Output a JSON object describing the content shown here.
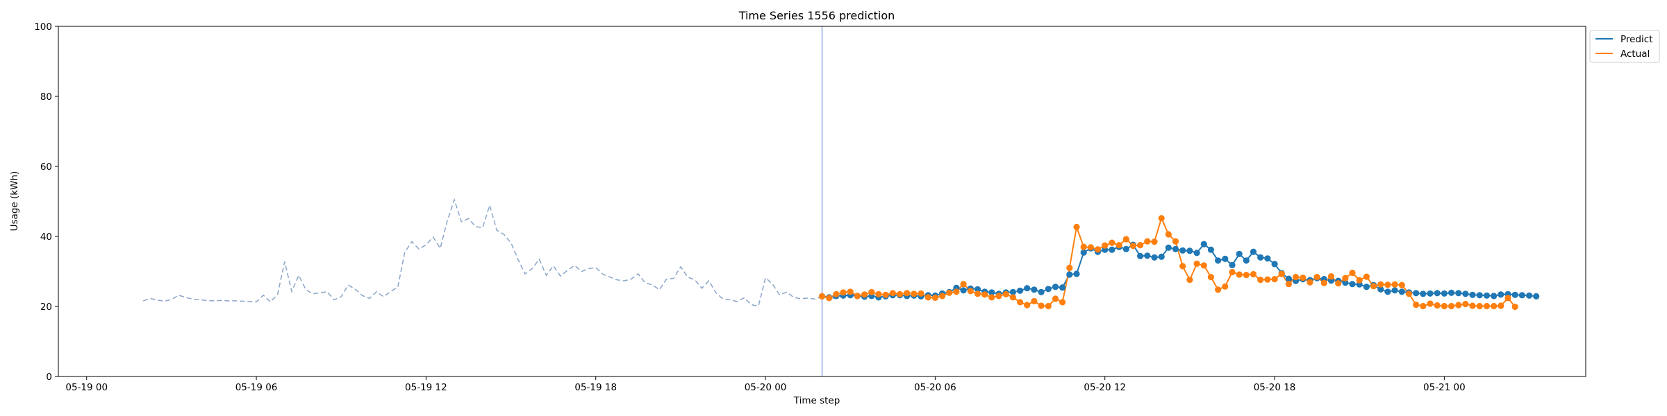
{
  "chart_data": {
    "type": "line",
    "title": "Time Series 1556 prediction",
    "xlabel": "Time step",
    "ylabel": "Usage (kWh)",
    "ylim": [
      0,
      100
    ],
    "yticks": [
      0,
      20,
      40,
      60,
      80,
      100
    ],
    "xlim": [
      "05-18 23:00",
      "05-21 05:00"
    ],
    "xticks": [
      {
        "t": "05-19 00:00",
        "label": "05-19 00"
      },
      {
        "t": "05-19 06:00",
        "label": "05-19 06"
      },
      {
        "t": "05-19 12:00",
        "label": "05-19 12"
      },
      {
        "t": "05-19 18:00",
        "label": "05-19 18"
      },
      {
        "t": "05-20 00:00",
        "label": "05-20 00"
      },
      {
        "t": "05-20 06:00",
        "label": "05-20 06"
      },
      {
        "t": "05-20 12:00",
        "label": "05-20 12"
      },
      {
        "t": "05-20 18:00",
        "label": "05-20 18"
      },
      {
        "t": "05-21 00:00",
        "label": "05-21 00"
      }
    ],
    "forecast_start": "05-20 02:00",
    "grid": false,
    "legend_position": "outside top-right",
    "history": {
      "color": "#8aa4c8",
      "style": "dashed",
      "start": "05-19 02:00",
      "interval_minutes": 15,
      "values": [
        21.6,
        22.3,
        21.8,
        21.5,
        22.0,
        23.2,
        22.6,
        22.1,
        21.9,
        21.7,
        21.6,
        21.7,
        21.6,
        21.6,
        21.5,
        21.4,
        21.3,
        23.2,
        21.3,
        23.4,
        32.8,
        24.3,
        28.9,
        24.8,
        23.6,
        23.9,
        24.2,
        21.9,
        22.8,
        26.1,
        24.9,
        23.1,
        22.3,
        24.2,
        22.8,
        24.3,
        25.5,
        35.5,
        38.5,
        36.4,
        37.6,
        39.8,
        36.6,
        44.4,
        50.5,
        44.2,
        45.1,
        42.8,
        42.5,
        48.9,
        41.8,
        40.6,
        38.2,
        33.5,
        29.3,
        30.8,
        33.5,
        28.9,
        31.6,
        28.7,
        30.3,
        31.7,
        30.0,
        30.8,
        31.1,
        29.2,
        28.4,
        27.6,
        27.3,
        27.8,
        29.3,
        26.7,
        26.2,
        24.8,
        27.8,
        28.0,
        31.3,
        28.4,
        27.6,
        25.2,
        27.3,
        23.9,
        22.1,
        21.9,
        21.4,
        22.5,
        20.5,
        20.1,
        28.2,
        26.4,
        23.3,
        24.1,
        22.6,
        22.2,
        22.4,
        22.1,
        22.9,
        22.4,
        22.3,
        23.1,
        22.9
      ]
    },
    "series": [
      {
        "name": "Predict",
        "color": "#1f77b4",
        "start": "05-20 02:00",
        "interval_minutes": 15,
        "values": [
          22.9,
          22.6,
          23.0,
          23.1,
          23.2,
          23.0,
          22.8,
          23.0,
          22.6,
          22.9,
          23.2,
          23.2,
          23.0,
          23.1,
          22.9,
          23.2,
          23.1,
          23.7,
          24.1,
          25.3,
          24.6,
          25.1,
          24.9,
          24.2,
          24.0,
          23.6,
          24.0,
          24.1,
          24.5,
          25.2,
          24.8,
          24.1,
          25.0,
          25.6,
          25.4,
          29.1,
          29.3,
          35.4,
          36.6,
          35.6,
          36.2,
          36.2,
          37.0,
          36.4,
          37.6,
          34.4,
          34.5,
          34.0,
          34.2,
          36.8,
          36.4,
          36.0,
          35.9,
          35.3,
          37.8,
          36.2,
          33.1,
          33.6,
          31.8,
          35.0,
          33.1,
          35.6,
          34.0,
          33.7,
          32.1,
          29.5,
          27.9,
          27.3,
          27.8,
          27.5,
          28.1,
          27.8,
          27.4,
          27.3,
          26.8,
          26.4,
          26.3,
          25.6,
          26.1,
          24.9,
          24.2,
          24.6,
          24.2,
          24.0,
          23.8,
          23.6,
          23.7,
          23.8,
          23.7,
          23.9,
          23.8,
          23.6,
          23.3,
          23.2,
          23.1,
          23.0,
          23.4,
          23.5,
          23.3,
          23.2,
          23.1,
          22.9
        ]
      },
      {
        "name": "Actual",
        "color": "#ff7f0e",
        "start": "05-20 02:00",
        "interval_minutes": 15,
        "values": [
          22.9,
          22.4,
          23.5,
          24.0,
          24.2,
          23.0,
          23.4,
          24.1,
          23.5,
          23.3,
          23.8,
          23.5,
          23.8,
          23.6,
          23.7,
          22.6,
          22.5,
          23.0,
          23.9,
          24.2,
          26.4,
          24.4,
          23.6,
          23.4,
          22.6,
          23.0,
          23.5,
          22.6,
          21.2,
          20.4,
          21.5,
          20.2,
          20.1,
          22.2,
          21.2,
          31.0,
          42.7,
          37.0,
          36.9,
          36.3,
          37.4,
          38.2,
          37.5,
          39.2,
          37.3,
          37.5,
          38.6,
          38.5,
          45.2,
          40.6,
          38.6,
          31.5,
          27.6,
          32.2,
          31.7,
          28.4,
          24.8,
          25.7,
          29.8,
          29.1,
          29.0,
          29.2,
          27.6,
          27.7,
          27.8,
          29.3,
          26.4,
          28.4,
          28.2,
          26.9,
          28.4,
          26.7,
          28.6,
          26.6,
          28.1,
          29.6,
          27.5,
          28.5,
          25.8,
          26.3,
          26.2,
          26.3,
          26.1,
          23.6,
          20.5,
          20.1,
          20.8,
          20.3,
          20.1,
          20.1,
          20.4,
          20.7,
          20.2,
          20.1,
          20.1,
          20.1,
          20.2,
          22.4,
          19.9
        ]
      }
    ]
  }
}
